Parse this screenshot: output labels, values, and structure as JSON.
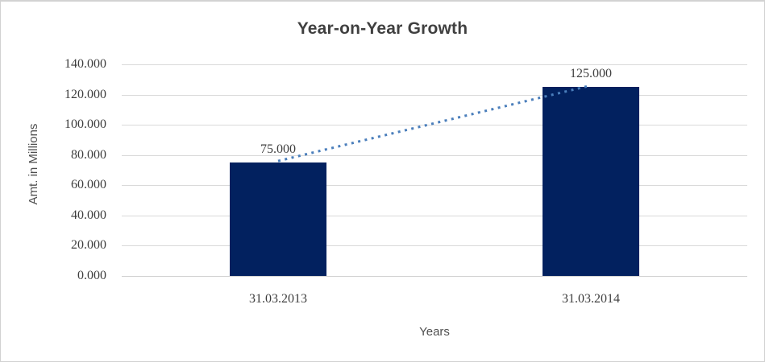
{
  "chart_data": {
    "type": "bar",
    "title": "Year-on-Year Growth",
    "xlabel": "Years",
    "ylabel": "Amt. in Millions",
    "categories": [
      "31.03.2013",
      "31.03.2014"
    ],
    "values": [
      75,
      125
    ],
    "data_labels": [
      "75.000",
      "125.000"
    ],
    "ylim": [
      0,
      140
    ],
    "ytick_step": 20,
    "ytick_labels": [
      "0.000",
      "20.000",
      "40.000",
      "60.000",
      "80.000",
      "100.000",
      "120.000",
      "140.000"
    ],
    "grid": true,
    "legend": "none",
    "trendline": {
      "style": "dotted",
      "color": "#4a7ebb",
      "from_category_index": 0,
      "from_value": 75,
      "to_category_index": 1,
      "to_value": 125
    },
    "colors": {
      "bar": "#02215f",
      "gridline": "#d9d9d9",
      "axis_line": "#cfcfcf",
      "title_text": "#404040",
      "tick_text": "#3d3d3d",
      "axis_title_text": "#4f4f4f",
      "border": "#d2d2d2",
      "background": "#ffffff"
    }
  }
}
